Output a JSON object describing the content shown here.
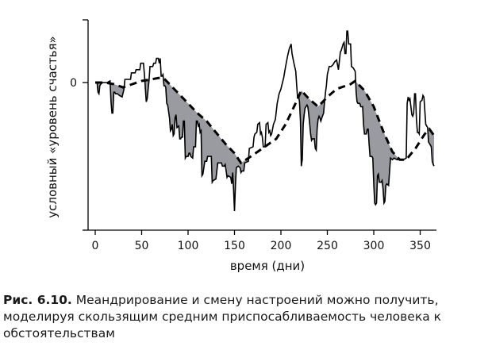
{
  "chart_data": {
    "type": "line",
    "xlabel": "время (дни)",
    "ylabel": "условный «уровень счастья»",
    "xlim": [
      0,
      370
    ],
    "ylim": [
      -4.6,
      2.1
    ],
    "x_ticks": [
      0,
      50,
      100,
      150,
      200,
      250,
      300,
      350
    ],
    "y_ticks": [
      0
    ],
    "y_tick_labels": [
      "0"
    ],
    "grid": false,
    "legend": "none",
    "series": [
      {
        "style": "solid",
        "points": [
          [
            0,
            0
          ],
          [
            2,
            0
          ],
          [
            3,
            -0.3
          ],
          [
            4,
            -0.35
          ],
          [
            5,
            -0.1
          ],
          [
            6,
            -0.05
          ],
          [
            8,
            0
          ],
          [
            13,
            0
          ],
          [
            16,
            0.05
          ],
          [
            17,
            -0.6
          ],
          [
            18,
            -0.95
          ],
          [
            19,
            -0.95
          ],
          [
            20,
            -0.3
          ],
          [
            21,
            -0.3
          ],
          [
            22,
            -0.35
          ],
          [
            24,
            -0.35
          ],
          [
            26,
            -0.4
          ],
          [
            29,
            -0.45
          ],
          [
            31,
            -0.2
          ],
          [
            32,
            0.1
          ],
          [
            38,
            0.1
          ],
          [
            39,
            0.3
          ],
          [
            43,
            0.3
          ],
          [
            44,
            0.4
          ],
          [
            48,
            0.4
          ],
          [
            49,
            0.6
          ],
          [
            52,
            0.6
          ],
          [
            53,
            0.25
          ],
          [
            55,
            -0.6
          ],
          [
            56,
            -0.5
          ],
          [
            58,
            0.1
          ],
          [
            59,
            0.5
          ],
          [
            62,
            0.5
          ],
          [
            63,
            0.6
          ],
          [
            65,
            0.6
          ],
          [
            66,
            0.75
          ],
          [
            68,
            0.75
          ],
          [
            69,
            0.6
          ],
          [
            70,
            0.75
          ],
          [
            71,
            0.2
          ],
          [
            72,
            0.2
          ],
          [
            73,
            0.25
          ],
          [
            74,
            -0.1
          ],
          [
            75,
            -0.1
          ],
          [
            76,
            -0.15
          ],
          [
            77,
            -0.65
          ],
          [
            78,
            -0.7
          ],
          [
            80,
            -1.1
          ],
          [
            81,
            -1.5
          ],
          [
            82,
            -1.45
          ],
          [
            83,
            -1.3
          ],
          [
            84,
            -1.65
          ],
          [
            85,
            -1.6
          ],
          [
            86,
            -1.1
          ],
          [
            87,
            -1.0
          ],
          [
            88,
            -1.4
          ],
          [
            90,
            -1.35
          ],
          [
            91,
            -1.75
          ],
          [
            92,
            -1.75
          ],
          [
            93,
            -1.7
          ],
          [
            94,
            -1.7
          ],
          [
            95,
            -1.2
          ],
          [
            96,
            -1.2
          ],
          [
            97,
            -2.35
          ],
          [
            98,
            -2.3
          ],
          [
            100,
            -2.3
          ],
          [
            101,
            -2.2
          ],
          [
            102,
            -2.2
          ],
          [
            103,
            -2.3
          ],
          [
            105,
            -2.35
          ],
          [
            106,
            -2.0
          ],
          [
            108,
            -2.0
          ],
          [
            109,
            -1.2
          ],
          [
            110,
            -1.2
          ],
          [
            111,
            -1.35
          ],
          [
            112,
            -1.3
          ],
          [
            113,
            -1.55
          ],
          [
            114,
            -1.5
          ],
          [
            115,
            -2.9
          ],
          [
            116,
            -2.85
          ],
          [
            118,
            -2.45
          ],
          [
            120,
            -2.45
          ],
          [
            121,
            -2.3
          ],
          [
            125,
            -2.3
          ],
          [
            126,
            -3.1
          ],
          [
            127,
            -3.05
          ],
          [
            130,
            -3.0
          ],
          [
            132,
            -2.5
          ],
          [
            136,
            -2.5
          ],
          [
            137,
            -2.6
          ],
          [
            139,
            -2.6
          ],
          [
            140,
            -2.55
          ],
          [
            142,
            -2.95
          ],
          [
            143,
            -2.9
          ],
          [
            146,
            -2.95
          ],
          [
            147,
            -3.15
          ],
          [
            148,
            -2.8
          ],
          [
            149,
            -3.3
          ],
          [
            150,
            -4.0
          ],
          [
            151,
            -3.2
          ],
          [
            152,
            -2.65
          ],
          [
            154,
            -2.6
          ],
          [
            156,
            -2.65
          ],
          [
            157,
            -2.8
          ],
          [
            158,
            -2.75
          ],
          [
            160,
            -2.75
          ],
          [
            161,
            -2.5
          ],
          [
            165,
            -2.45
          ],
          [
            166,
            -2.05
          ],
          [
            170,
            -2.0
          ],
          [
            171,
            -1.7
          ],
          [
            172,
            -1.6
          ],
          [
            174,
            -1.55
          ],
          [
            175,
            -1.3
          ],
          [
            177,
            -1.25
          ],
          [
            178,
            -1.6
          ],
          [
            179,
            -1.55
          ],
          [
            180,
            -1.7
          ],
          [
            181,
            -2.0
          ],
          [
            183,
            -2.0
          ],
          [
            184,
            -1.3
          ],
          [
            186,
            -1.25
          ],
          [
            187,
            -1.55
          ],
          [
            188,
            -1.5
          ],
          [
            189,
            -1.65
          ],
          [
            190,
            -1.6
          ],
          [
            192,
            -1.3
          ],
          [
            194,
            -1.15
          ],
          [
            196,
            -0.65
          ],
          [
            198,
            -0.35
          ],
          [
            200,
            -0.2
          ],
          [
            203,
            0.15
          ],
          [
            205,
            0.5
          ],
          [
            207,
            0.8
          ],
          [
            209,
            1.05
          ],
          [
            211,
            1.2
          ],
          [
            212,
            0.9
          ],
          [
            214,
            0.6
          ],
          [
            216,
            0.35
          ],
          [
            217,
            -0.1
          ],
          [
            218,
            -0.5
          ],
          [
            219,
            -0.4
          ],
          [
            220,
            -0.6
          ],
          [
            221,
            -1.2
          ],
          [
            222,
            -2.6
          ],
          [
            223,
            -2.4
          ],
          [
            224,
            -1.3
          ],
          [
            225,
            -1.0
          ],
          [
            226,
            -0.8
          ],
          [
            228,
            -0.7
          ],
          [
            229,
            -0.75
          ],
          [
            230,
            -1.0
          ],
          [
            231,
            -1.3
          ],
          [
            232,
            -1.6
          ],
          [
            233,
            -1.8
          ],
          [
            234,
            -1.75
          ],
          [
            236,
            -1.75
          ],
          [
            237,
            -2.05
          ],
          [
            238,
            -2.1
          ],
          [
            239,
            -1.45
          ],
          [
            240,
            -1.15
          ],
          [
            241,
            -1.05
          ],
          [
            242,
            -1.1
          ],
          [
            243,
            -1.2
          ],
          [
            244,
            -1.1
          ],
          [
            246,
            -0.95
          ],
          [
            247,
            -0.6
          ],
          [
            248,
            -0.3
          ],
          [
            249,
            -0.1
          ],
          [
            250,
            0.25
          ],
          [
            252,
            0.5
          ],
          [
            254,
            0.5
          ],
          [
            256,
            0.55
          ],
          [
            258,
            0.65
          ],
          [
            260,
            0.7
          ],
          [
            262,
            0.4
          ],
          [
            264,
            0.95
          ],
          [
            265,
            1.0
          ],
          [
            267,
            1.2
          ],
          [
            268,
            1.25
          ],
          [
            269,
            0.9
          ],
          [
            270,
            0.9
          ],
          [
            271,
            1.6
          ],
          [
            272,
            1.6
          ],
          [
            273,
            1.2
          ],
          [
            275,
            1.2
          ],
          [
            276,
            0.5
          ],
          [
            278,
            0.45
          ],
          [
            280,
            0.35
          ],
          [
            281,
            -0.3
          ],
          [
            282,
            -0.6
          ],
          [
            283,
            -0.65
          ],
          [
            285,
            -0.65
          ],
          [
            286,
            -0.75
          ],
          [
            288,
            -0.75
          ],
          [
            289,
            -1.3
          ],
          [
            290,
            -1.6
          ],
          [
            292,
            -1.6
          ],
          [
            293,
            -1.45
          ],
          [
            294,
            -1.45
          ],
          [
            295,
            -1.9
          ],
          [
            296,
            -2.3
          ],
          [
            298,
            -2.3
          ],
          [
            299,
            -2.35
          ],
          [
            300,
            -3.15
          ],
          [
            301,
            -3.75
          ],
          [
            302,
            -3.8
          ],
          [
            303,
            -3.75
          ],
          [
            304,
            -2.9
          ],
          [
            305,
            -2.85
          ],
          [
            306,
            -3.1
          ],
          [
            308,
            -3.1
          ],
          [
            309,
            -3.05
          ],
          [
            310,
            -3.3
          ],
          [
            311,
            -3.75
          ],
          [
            312,
            -3.7
          ],
          [
            313,
            -3.2
          ],
          [
            314,
            -3.15
          ],
          [
            316,
            -3.2
          ],
          [
            318,
            -2.35
          ],
          [
            320,
            -2.4
          ],
          [
            322,
            -2.35
          ],
          [
            325,
            -2.4
          ],
          [
            328,
            -2.4
          ],
          [
            332,
            -2.4
          ],
          [
            335,
            -2.35
          ],
          [
            336,
            -0.65
          ],
          [
            337,
            -0.45
          ],
          [
            338,
            -0.55
          ],
          [
            339,
            -0.5
          ],
          [
            340,
            -0.75
          ],
          [
            341,
            -1.0
          ],
          [
            342,
            -1.05
          ],
          [
            343,
            -0.95
          ],
          [
            344,
            -0.35
          ],
          [
            345,
            -0.35
          ],
          [
            346,
            -1.15
          ],
          [
            347,
            -1.55
          ],
          [
            348,
            -1.55
          ],
          [
            349,
            -1.6
          ],
          [
            350,
            -0.6
          ],
          [
            352,
            -0.55
          ],
          [
            353,
            -0.4
          ],
          [
            354,
            -0.45
          ],
          [
            356,
            -1.3
          ],
          [
            358,
            -1.4
          ],
          [
            359,
            -1.85
          ],
          [
            360,
            -1.9
          ],
          [
            361,
            -1.95
          ],
          [
            362,
            -2.0
          ],
          [
            363,
            -2.45
          ],
          [
            364,
            -2.55
          ],
          [
            365,
            -2.6
          ]
        ]
      },
      {
        "style": "dashed",
        "points": [
          [
            0,
            0
          ],
          [
            10,
            0
          ],
          [
            20,
            -0.05
          ],
          [
            30,
            -0.15
          ],
          [
            40,
            -0.05
          ],
          [
            50,
            0.05
          ],
          [
            60,
            0.1
          ],
          [
            70,
            0.15
          ],
          [
            75,
            0.1
          ],
          [
            80,
            -0.05
          ],
          [
            90,
            -0.35
          ],
          [
            100,
            -0.65
          ],
          [
            110,
            -0.95
          ],
          [
            120,
            -1.2
          ],
          [
            130,
            -1.55
          ],
          [
            140,
            -1.9
          ],
          [
            150,
            -2.2
          ],
          [
            157,
            -2.5
          ],
          [
            165,
            -2.35
          ],
          [
            175,
            -2.15
          ],
          [
            185,
            -1.95
          ],
          [
            195,
            -1.75
          ],
          [
            205,
            -1.3
          ],
          [
            215,
            -0.7
          ],
          [
            222,
            -0.25
          ],
          [
            230,
            -0.5
          ],
          [
            240,
            -0.75
          ],
          [
            250,
            -0.45
          ],
          [
            260,
            -0.2
          ],
          [
            265,
            -0.15
          ],
          [
            270,
            -0.1
          ],
          [
            275,
            -0.05
          ],
          [
            280,
            0.05
          ],
          [
            290,
            -0.25
          ],
          [
            300,
            -0.75
          ],
          [
            310,
            -1.5
          ],
          [
            320,
            -2.15
          ],
          [
            328,
            -2.4
          ],
          [
            335,
            -2.4
          ],
          [
            345,
            -2.05
          ],
          [
            355,
            -1.6
          ],
          [
            360,
            -1.45
          ],
          [
            365,
            -1.65
          ]
        ]
      }
    ]
  },
  "caption": {
    "label": "Рис. 6.10.",
    "text": " Меандрирование и смену настроений можно получить, моделируя скользящим средним приспосабливаемость человека к обстоятельствам"
  }
}
